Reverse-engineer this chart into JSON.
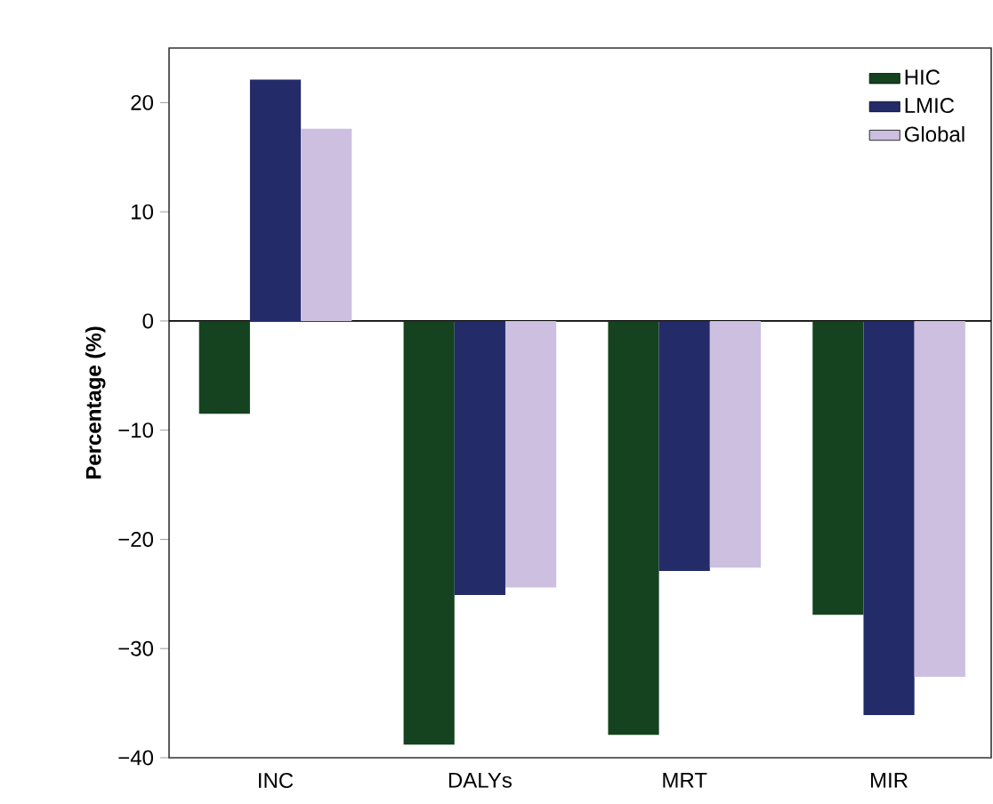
{
  "chart_data": {
    "type": "bar",
    "ylabel": "Percentage (%)",
    "categories": [
      "INC",
      "DALYs",
      "MRT",
      "MIR"
    ],
    "series": [
      {
        "name": "HIC",
        "color": "#154320",
        "values": [
          -8.5,
          -38.8,
          -37.9,
          -26.9
        ]
      },
      {
        "name": "LMIC",
        "color": "#232b69",
        "values": [
          22.1,
          -25.1,
          -22.9,
          -36.1
        ]
      },
      {
        "name": "Global",
        "color": "#cdbfe0",
        "values": [
          17.6,
          -24.4,
          -22.6,
          -32.6
        ]
      }
    ],
    "ylim": [
      -40,
      25
    ],
    "yticks": [
      {
        "value": -40,
        "label": "−40"
      },
      {
        "value": -30,
        "label": "−30"
      },
      {
        "value": -20,
        "label": "−20"
      },
      {
        "value": -10,
        "label": "−10"
      },
      0,
      10,
      20
    ],
    "legend": "top right"
  }
}
